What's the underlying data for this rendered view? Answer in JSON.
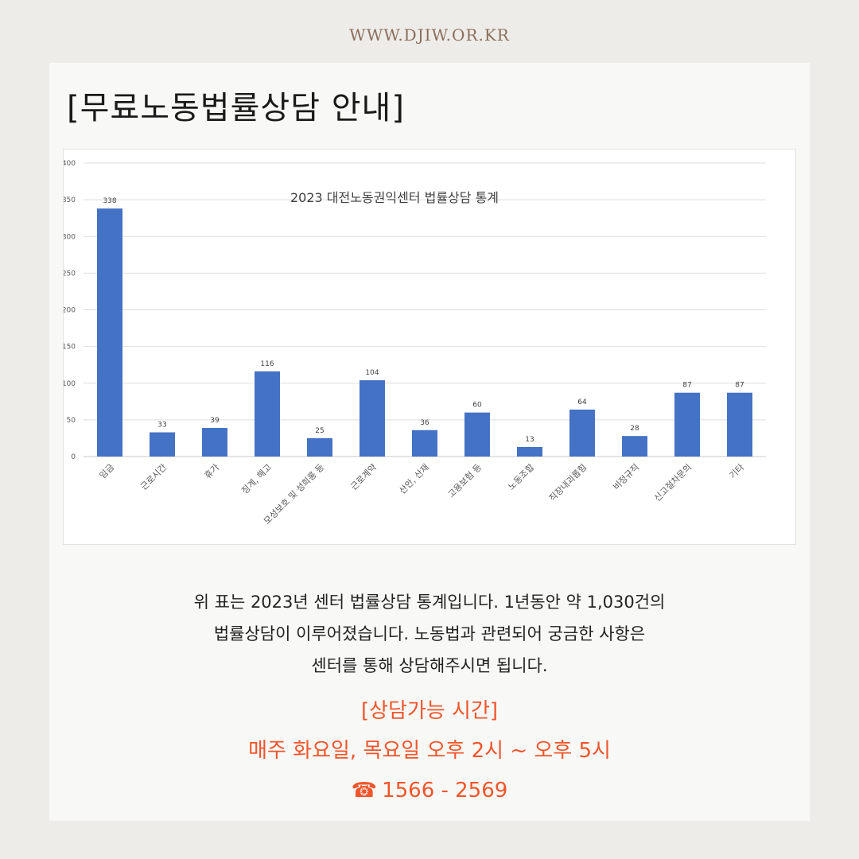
{
  "site": {
    "url": "WWW.DJIW.OR.KR"
  },
  "page": {
    "title": "[무료노동법률상담 안내]"
  },
  "chart_data": {
    "type": "bar",
    "title": "2023 대전노동권익센터 법률상담 통계",
    "categories": [
      "임금",
      "근로시간",
      "휴가",
      "징계, 해고",
      "모성보호 및 성희롱 등",
      "근로계약",
      "산안, 산재",
      "고용보험 등",
      "노동조합",
      "직장내괴롭힘",
      "비정규직",
      "신고절차문의",
      "기타"
    ],
    "values": [
      338,
      33,
      39,
      116,
      25,
      104,
      36,
      60,
      13,
      64,
      28,
      87,
      87
    ],
    "ylim": [
      0,
      400
    ],
    "yticks": [
      0,
      50,
      100,
      150,
      200,
      250,
      300,
      350,
      400
    ],
    "grid": true,
    "data_labels": true,
    "bar_color": "#4472c4"
  },
  "description": {
    "lines": [
      "위 표는 2023년 센터 법률상담 통계입니다. 1년동안 약 1,030건의",
      "법률상담이 이루어졌습니다. 노동법과 관련되어 궁금한 사항은",
      "센터를 통해 상담해주시면 됩니다."
    ]
  },
  "consult": {
    "heading": "[상담가능 시간]",
    "schedule": "매주 화요일, 목요일 오후 2시 ~ 오후 5시",
    "phone_icon": "☎",
    "phone": "1566 - 2569",
    "accent_color": "#f0552b"
  }
}
